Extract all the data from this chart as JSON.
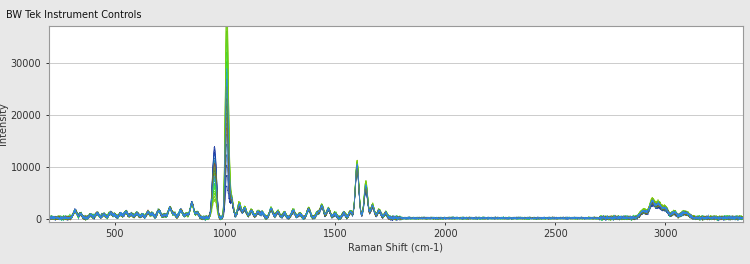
{
  "title": "BW Tek Instrument Controls",
  "xlabel": "Raman Shift (cm-1)",
  "ylabel": "Intensity",
  "xlim": [
    200,
    3350
  ],
  "ylim": [
    -500,
    37000
  ],
  "yticks": [
    0,
    10000,
    20000,
    30000
  ],
  "xticks": [
    500,
    1000,
    1500,
    2000,
    2500,
    3000
  ],
  "bg_color": "#e8e8e8",
  "plot_bg_color": "#ffffff",
  "grid_color": "#cccccc",
  "title_fontsize": 7,
  "axis_fontsize": 7,
  "tick_fontsize": 7,
  "n_spectra": 20
}
